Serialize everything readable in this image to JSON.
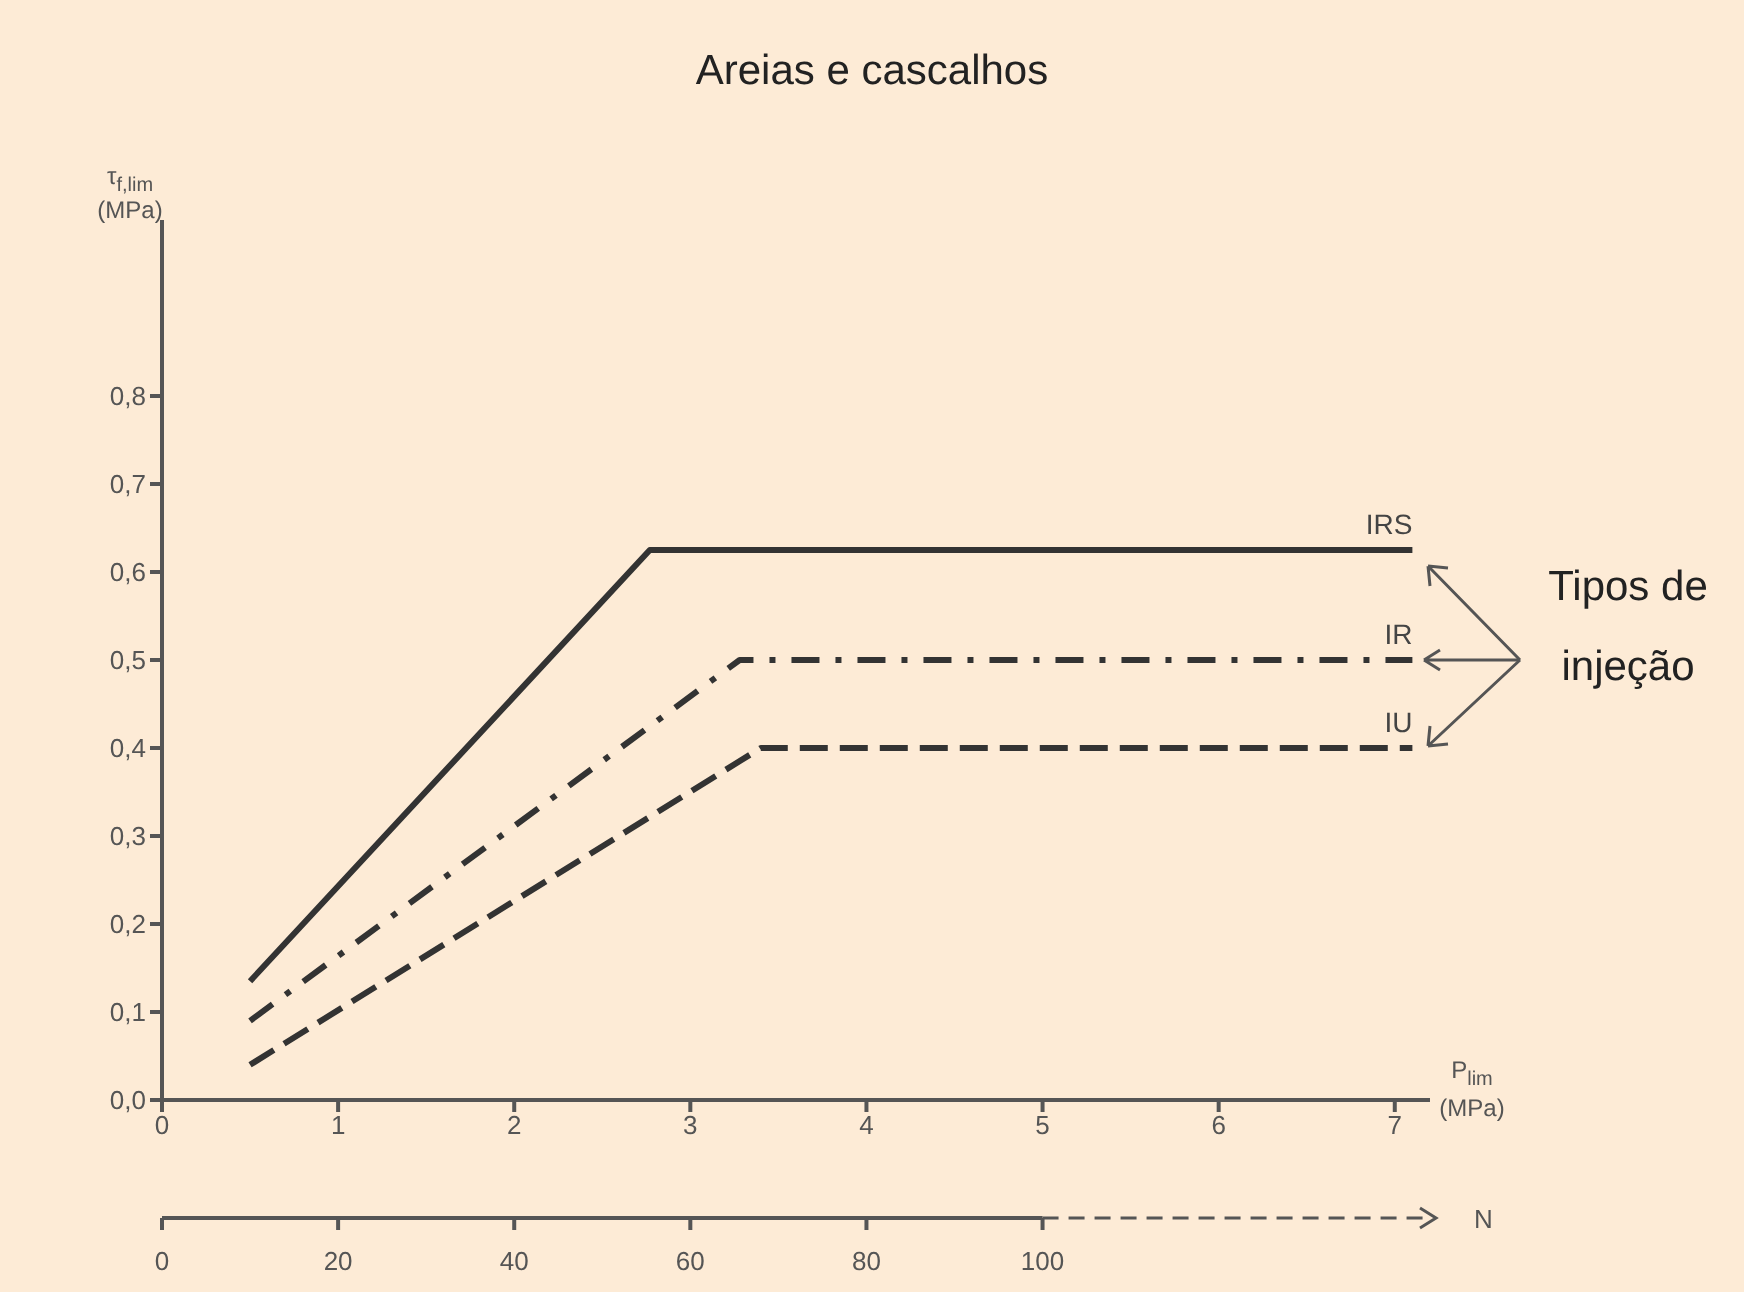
{
  "chart_data": {
    "type": "line",
    "title": "Areias e cascalhos",
    "xlabel": "P$_{lim}$ (MPa)",
    "ylabel": "τ$_{f,lim}$ (MPa)",
    "x2label": "N",
    "annotations": [
      "Tipos de injeção"
    ],
    "series": [
      {
        "name": "IRS",
        "color": "#333333",
        "line_style": "solid",
        "x": [
          0.5,
          2.77,
          7.1
        ],
        "values": [
          0.135,
          0.625,
          0.625
        ]
      },
      {
        "name": "IR",
        "color": "#333333",
        "line_style": "dashdot",
        "x": [
          0.5,
          3.28,
          7.1
        ],
        "values": [
          0.09,
          0.5,
          0.5
        ]
      },
      {
        "name": "IU",
        "color": "#333333",
        "line_style": "dashed",
        "x": [
          0.5,
          3.4,
          7.1
        ],
        "values": [
          0.04,
          0.4,
          0.4
        ]
      }
    ],
    "xlim": [
      0,
      7.2
    ],
    "xticks": [
      0,
      1,
      2,
      3,
      4,
      5,
      6,
      7
    ],
    "ylim": [
      0,
      1
    ],
    "yticks": [
      {
        "value": 0,
        "label": "0,0"
      },
      {
        "value": 0.1,
        "label": "0,1"
      },
      {
        "value": 0.2,
        "label": "0,2"
      },
      {
        "value": 0.3,
        "label": "0,3"
      },
      {
        "value": 0.4,
        "label": "0,4"
      },
      {
        "value": 0.5,
        "label": "0,5"
      },
      {
        "value": 0.6,
        "label": "0,6"
      },
      {
        "value": 0.7,
        "label": "0,7"
      },
      {
        "value": 0.8,
        "label": "0,8"
      }
    ],
    "x2lim": [
      0,
      144
    ],
    "x2ticks": [
      0,
      20,
      40,
      60,
      80,
      100
    ],
    "grid": false,
    "legend": false,
    "marker": "none"
  }
}
